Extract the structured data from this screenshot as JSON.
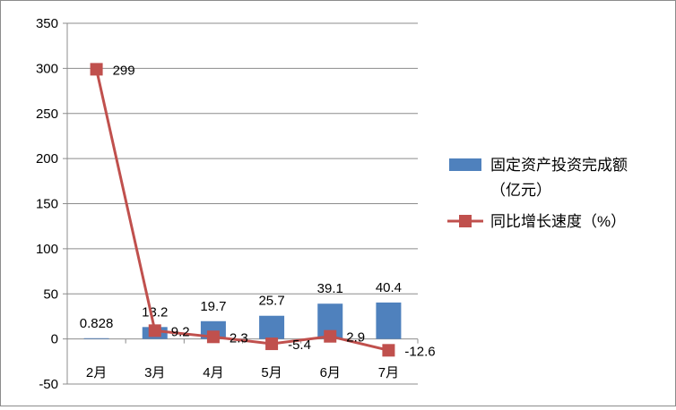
{
  "chart_data": {
    "type": "bar",
    "categories": [
      "2月",
      "3月",
      "4月",
      "5月",
      "6月",
      "7月"
    ],
    "ylim": [
      -50,
      350
    ],
    "yticks": [
      -50,
      0,
      50,
      100,
      150,
      200,
      250,
      300,
      350
    ],
    "grid": true,
    "legend_position": "right",
    "series": [
      {
        "name": "固定资产投资完成额（亿元）",
        "name_lines": [
          "固定资产投资完成额",
          "（亿元）"
        ],
        "kind": "bar",
        "color": "#4f81bd",
        "values": [
          0.828,
          13.2,
          19.7,
          25.7,
          39.1,
          40.4
        ],
        "labels": [
          "0.828",
          "13.2",
          "19.7",
          "25.7",
          "39.1",
          "40.4"
        ]
      },
      {
        "name": "同比增长速度（%）",
        "kind": "line",
        "color": "#c0504d",
        "values": [
          299,
          9.2,
          2.3,
          -5.4,
          2.9,
          -12.6
        ],
        "labels": [
          "299",
          "9.2",
          "2.3",
          "-5.4",
          "2.9",
          "-12.6"
        ]
      }
    ]
  }
}
